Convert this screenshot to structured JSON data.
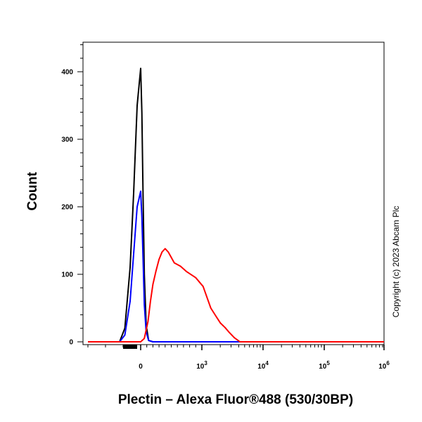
{
  "chart_data": {
    "type": "line",
    "title": "",
    "xlabel": "Plectin – Alexa Fluor®488 (530/30BP)",
    "ylabel": "Count",
    "xscale": "biexponential",
    "xlim": [
      -300,
      1000000
    ],
    "ylim": [
      0,
      450
    ],
    "grid": false,
    "legend": "none",
    "x_tick_labels": [
      {
        "value": 0,
        "label": "0",
        "base": "0",
        "exp": ""
      },
      {
        "value": 1000,
        "label": "10^3",
        "base": "10",
        "exp": "3"
      },
      {
        "value": 10000,
        "label": "10^4",
        "base": "10",
        "exp": "4"
      },
      {
        "value": 100000,
        "label": "10^5",
        "base": "10",
        "exp": "5"
      },
      {
        "value": 1000000,
        "label": "10^6",
        "base": "10",
        "exp": "6"
      }
    ],
    "y_ticks": [
      0,
      100,
      200,
      300,
      400
    ],
    "y_tick_labels": [
      "0",
      "100",
      "200",
      "300",
      "400"
    ],
    "series": [
      {
        "color": "#000000",
        "x": [
          -300,
          -120,
          -90,
          -60,
          -40,
          -20,
          0,
          20,
          40,
          60,
          90,
          130,
          200,
          1000000
        ],
        "y": [
          0,
          0,
          20,
          110,
          220,
          350,
          405,
          340,
          210,
          100,
          25,
          2,
          0,
          0
        ]
      },
      {
        "color": "#0000ff",
        "x": [
          -300,
          -120,
          -90,
          -60,
          -40,
          -20,
          0,
          20,
          40,
          60,
          90,
          130,
          200,
          1000000
        ],
        "y": [
          0,
          0,
          10,
          60,
          130,
          200,
          223,
          185,
          120,
          55,
          15,
          2,
          0,
          0
        ]
      },
      {
        "color": "#ff0000",
        "x": [
          -300,
          0,
          60,
          120,
          160,
          200,
          250,
          300,
          350,
          400,
          450,
          500,
          550,
          650,
          750,
          900,
          1050,
          1200,
          1400,
          1700,
          2000,
          2400,
          2800,
          3400,
          4200,
          1000000
        ],
        "y": [
          0,
          0,
          5,
          30,
          60,
          85,
          105,
          122,
          133,
          138,
          133,
          125,
          117,
          112,
          104,
          95,
          82,
          67,
          50,
          38,
          28,
          21,
          14,
          6,
          0,
          0
        ]
      }
    ]
  },
  "copyright": "Copyright (c) 2023 Abcam Plc"
}
